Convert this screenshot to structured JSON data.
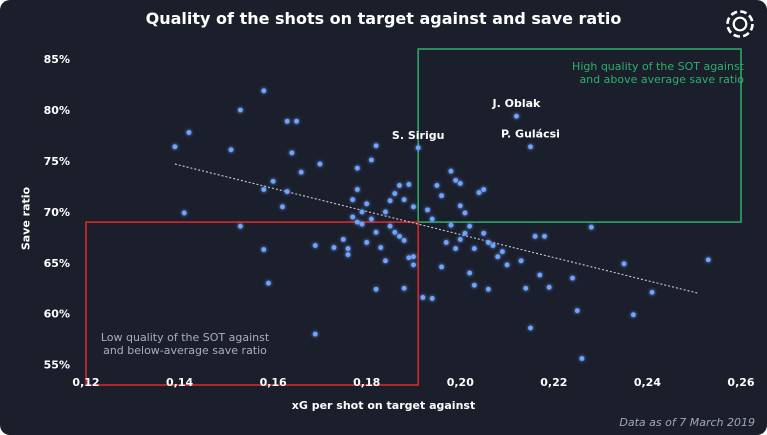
{
  "chart_data": {
    "type": "scatter",
    "title": "Quality of the shots on target against and save ratio",
    "xlabel": "xG per shot on target against",
    "ylabel": "Save ratio",
    "xlim": [
      0.12,
      0.26
    ],
    "ylim": [
      53.0,
      86.0
    ],
    "x_ticks": [
      {
        "value": 0.12,
        "label": "0,12"
      },
      {
        "value": 0.14,
        "label": "0,14"
      },
      {
        "value": 0.16,
        "label": "0,16"
      },
      {
        "value": 0.18,
        "label": "0,18"
      },
      {
        "value": 0.2,
        "label": "0,20"
      },
      {
        "value": 0.22,
        "label": "0,22"
      },
      {
        "value": 0.24,
        "label": "0,24"
      },
      {
        "value": 0.26,
        "label": "0,26"
      }
    ],
    "y_ticks": [
      {
        "value": 55,
        "label": "55%"
      },
      {
        "value": 60,
        "label": "60%"
      },
      {
        "value": 65,
        "label": "65%"
      },
      {
        "value": 70,
        "label": "70%"
      },
      {
        "value": 75,
        "label": "75%"
      },
      {
        "value": 80,
        "label": "80%"
      },
      {
        "value": 85,
        "label": "85%"
      }
    ],
    "grid": false,
    "legend": null,
    "trendline": {
      "from": [
        0.139,
        74.7
      ],
      "to": [
        0.251,
        62.0
      ],
      "style": "dotted",
      "color": "#c9ccd6"
    },
    "points": [
      [
        0.158,
        81.9
      ],
      [
        0.153,
        80.0
      ],
      [
        0.163,
        78.9
      ],
      [
        0.165,
        78.9
      ],
      [
        0.142,
        77.8
      ],
      [
        0.151,
        76.1
      ],
      [
        0.139,
        76.4
      ],
      [
        0.164,
        75.8
      ],
      [
        0.17,
        74.7
      ],
      [
        0.178,
        74.3
      ],
      [
        0.182,
        76.5
      ],
      [
        0.181,
        75.1
      ],
      [
        0.166,
        73.9
      ],
      [
        0.16,
        73.0
      ],
      [
        0.158,
        72.2
      ],
      [
        0.163,
        72.0
      ],
      [
        0.162,
        70.5
      ],
      [
        0.141,
        69.9
      ],
      [
        0.153,
        68.6
      ],
      [
        0.158,
        66.3
      ],
      [
        0.159,
        63.0
      ],
      [
        0.169,
        66.7
      ],
      [
        0.173,
        66.5
      ],
      [
        0.169,
        58.0
      ],
      [
        0.175,
        67.3
      ],
      [
        0.176,
        66.4
      ],
      [
        0.176,
        65.8
      ],
      [
        0.177,
        69.5
      ],
      [
        0.178,
        69.0
      ],
      [
        0.179,
        68.8
      ],
      [
        0.18,
        67.0
      ],
      [
        0.181,
        69.3
      ],
      [
        0.182,
        68.0
      ],
      [
        0.183,
        66.5
      ],
      [
        0.184,
        65.2
      ],
      [
        0.182,
        62.4
      ],
      [
        0.184,
        70.0
      ],
      [
        0.185,
        71.1
      ],
      [
        0.186,
        71.8
      ],
      [
        0.187,
        72.6
      ],
      [
        0.188,
        71.2
      ],
      [
        0.189,
        72.7
      ],
      [
        0.19,
        70.5
      ],
      [
        0.185,
        68.6
      ],
      [
        0.186,
        68.0
      ],
      [
        0.187,
        67.6
      ],
      [
        0.188,
        67.2
      ],
      [
        0.189,
        65.5
      ],
      [
        0.19,
        64.8
      ],
      [
        0.188,
        62.5
      ],
      [
        0.177,
        71.2
      ],
      [
        0.178,
        72.2
      ],
      [
        0.179,
        70.0
      ],
      [
        0.18,
        70.8
      ],
      [
        0.191,
        76.3
      ],
      [
        0.19,
        65.6
      ],
      [
        0.192,
        61.6
      ],
      [
        0.194,
        61.5
      ],
      [
        0.193,
        70.2
      ],
      [
        0.194,
        69.3
      ],
      [
        0.195,
        72.6
      ],
      [
        0.196,
        71.6
      ],
      [
        0.196,
        64.6
      ],
      [
        0.197,
        67.0
      ],
      [
        0.198,
        74.0
      ],
      [
        0.198,
        68.7
      ],
      [
        0.199,
        73.1
      ],
      [
        0.2,
        72.8
      ],
      [
        0.2,
        67.3
      ],
      [
        0.199,
        66.4
      ],
      [
        0.2,
        70.6
      ],
      [
        0.201,
        69.9
      ],
      [
        0.201,
        67.9
      ],
      [
        0.202,
        64.0
      ],
      [
        0.202,
        68.6
      ],
      [
        0.203,
        66.4
      ],
      [
        0.203,
        62.8
      ],
      [
        0.204,
        71.9
      ],
      [
        0.205,
        72.2
      ],
      [
        0.205,
        67.9
      ],
      [
        0.206,
        67.0
      ],
      [
        0.206,
        62.4
      ],
      [
        0.207,
        66.7
      ],
      [
        0.208,
        65.6
      ],
      [
        0.209,
        66.1
      ],
      [
        0.21,
        64.8
      ],
      [
        0.212,
        79.4
      ],
      [
        0.213,
        65.2
      ],
      [
        0.215,
        76.4
      ],
      [
        0.214,
        62.5
      ],
      [
        0.215,
        58.6
      ],
      [
        0.216,
        67.6
      ],
      [
        0.217,
        63.8
      ],
      [
        0.218,
        67.6
      ],
      [
        0.219,
        62.6
      ],
      [
        0.224,
        63.5
      ],
      [
        0.225,
        60.3
      ],
      [
        0.226,
        55.6
      ],
      [
        0.228,
        68.5
      ],
      [
        0.235,
        64.9
      ],
      [
        0.237,
        59.9
      ],
      [
        0.241,
        62.1
      ],
      [
        0.253,
        65.3
      ]
    ],
    "labeled_points": [
      {
        "name": "J. Oblak",
        "x": 0.212,
        "y": 79.4
      },
      {
        "name": "S. Sirigu",
        "x": 0.191,
        "y": 76.3
      },
      {
        "name": "P. Gulácsi",
        "x": 0.215,
        "y": 76.4
      }
    ],
    "regions": [
      {
        "note": [
          "High quality of the SOT against",
          "and above average save ratio"
        ],
        "x_from": 0.191,
        "x_to": 0.26,
        "y_from": 69.0,
        "y_to": 86.0,
        "color": "#2fae6a"
      },
      {
        "note": [
          "Low quality of the SOT against",
          "and below-average save ratio"
        ],
        "x_from": 0.12,
        "x_to": 0.191,
        "y_from": 53.0,
        "y_to": 69.0,
        "color": "#e02a2a"
      }
    ],
    "colors": {
      "background": "#1b1f2c",
      "points": "#6fa4ff",
      "text": "#ffffff",
      "footnote": "#a3a8b6"
    }
  },
  "footnote": "Data as of 7 March 2019",
  "logo_icon": "opta-ring-icon"
}
